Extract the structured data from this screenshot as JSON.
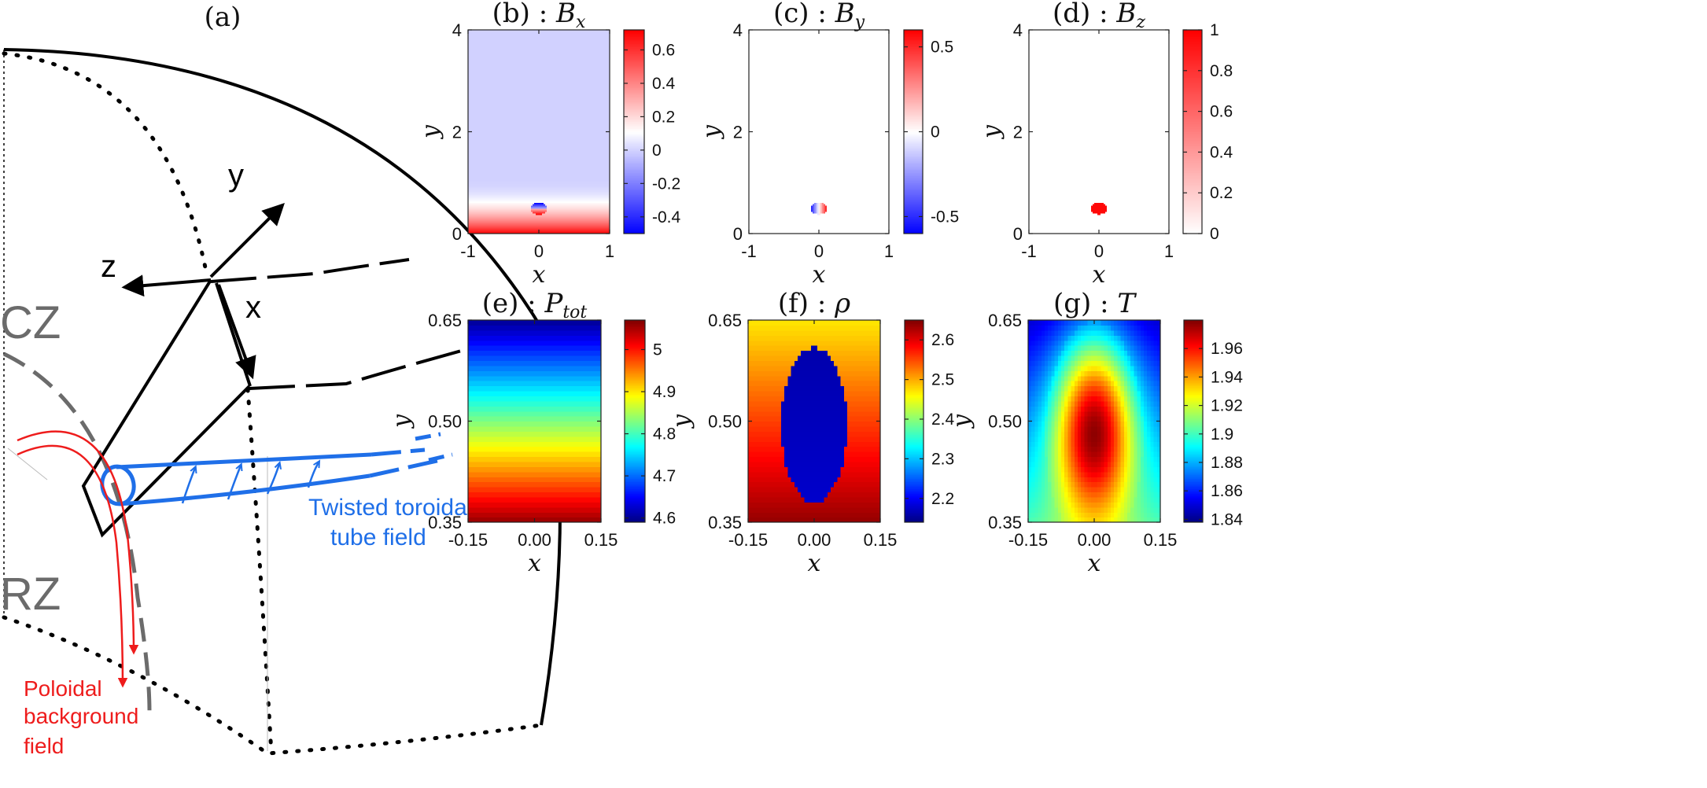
{
  "sketch": {
    "title": "(a)",
    "axis_x": "x",
    "axis_y": "y",
    "axis_z": "z",
    "label_cz": "CZ",
    "label_rz": "RZ",
    "tube_label": [
      "Twisted toroidal",
      "tube field"
    ],
    "poloidal_label": [
      "Poloidal",
      "background",
      "field"
    ],
    "colors": {
      "tube": "#1f6fe8",
      "poloidal": "#ee1c1c",
      "zone": "#666666"
    }
  },
  "chart_data": [
    {
      "id": "b",
      "type": "heatmap",
      "title": "(b) : Bx",
      "title_prefix": "(b) : ",
      "title_var": "B",
      "title_sub": "x",
      "xlabel": "x",
      "ylabel": "y",
      "xlim": [
        -1,
        1
      ],
      "ylim": [
        0,
        4
      ],
      "xticks": [
        "-1",
        "0",
        "1"
      ],
      "yticks": [
        "0",
        "2",
        "4"
      ],
      "colorbar": {
        "colormap": "blue-white-red",
        "min": -0.5,
        "max": 0.72,
        "ticks": [
          "0.6",
          "0.4",
          "0.2",
          "0",
          "-0.2",
          "-0.4"
        ]
      },
      "field": {
        "kind": "Bx",
        "tube_center": [
          0,
          0.5
        ],
        "background_decay_top": 1.1
      }
    },
    {
      "id": "c",
      "type": "heatmap",
      "title": "(c) : By",
      "title_prefix": "(c) : ",
      "title_var": "B",
      "title_sub": "y",
      "xlabel": "x",
      "ylabel": "y",
      "xlim": [
        -1,
        1
      ],
      "ylim": [
        0,
        4
      ],
      "xticks": [
        "-1",
        "0",
        "1"
      ],
      "yticks": [
        "0",
        "2",
        "4"
      ],
      "colorbar": {
        "colormap": "blue-white-red",
        "min": -0.6,
        "max": 0.6,
        "ticks": [
          "0.5",
          "0",
          "-0.5"
        ]
      },
      "field": {
        "kind": "By",
        "tube_center": [
          0,
          0.5
        ]
      }
    },
    {
      "id": "d",
      "type": "heatmap",
      "title": "(d) : Bz",
      "title_prefix": "(d) : ",
      "title_var": "B",
      "title_sub": "z",
      "xlabel": "x",
      "ylabel": "y",
      "xlim": [
        -1,
        1
      ],
      "ylim": [
        0,
        4
      ],
      "xticks": [
        "-1",
        "0",
        "1"
      ],
      "yticks": [
        "0",
        "2",
        "4"
      ],
      "colorbar": {
        "colormap": "white-red",
        "min": 0,
        "max": 1,
        "ticks": [
          "1",
          "0.8",
          "0.6",
          "0.4",
          "0.2",
          "0"
        ]
      },
      "field": {
        "kind": "Bz",
        "tube_center": [
          0,
          0.5
        ]
      }
    },
    {
      "id": "e",
      "type": "heatmap",
      "title": "(e) : Ptot",
      "title_prefix": "(e) : ",
      "title_var": "P",
      "title_sub": "tot",
      "xlabel": "x",
      "ylabel": "y",
      "xlim": [
        -0.15,
        0.15
      ],
      "ylim": [
        0.35,
        0.65
      ],
      "xticks": [
        "-0.15",
        "0.00",
        "0.15"
      ],
      "yticks": [
        "0.35",
        "0.50",
        "0.65"
      ],
      "colorbar": {
        "colormap": "jet",
        "min": 4.59,
        "max": 5.07,
        "ticks": [
          "5",
          "4.9",
          "4.8",
          "4.7",
          "4.6"
        ]
      },
      "field": {
        "kind": "Ptot",
        "bottom_value": 5.06,
        "top_value": 4.6
      }
    },
    {
      "id": "f",
      "type": "heatmap",
      "title": "(f) : ρ",
      "title_prefix": "(f) : ",
      "title_var": "ρ",
      "title_sub": "",
      "xlabel": "x",
      "ylabel": "y",
      "xlim": [
        -0.15,
        0.15
      ],
      "ylim": [
        0.35,
        0.65
      ],
      "xticks": [
        "-0.15",
        "0.00",
        "0.15"
      ],
      "yticks": [
        "0.35",
        "0.50",
        "0.65"
      ],
      "colorbar": {
        "colormap": "jet",
        "min": 2.14,
        "max": 2.65,
        "ticks": [
          "2.6",
          "2.5",
          "2.4",
          "2.3",
          "2.2"
        ]
      },
      "field": {
        "kind": "rho",
        "bottom_value": 2.64,
        "top_value": 2.47,
        "inside_value": 2.16,
        "tube_center": [
          0,
          0.495
        ],
        "tube_radius": [
          0.075,
          0.115
        ]
      }
    },
    {
      "id": "g",
      "type": "heatmap",
      "title": "(g) : T",
      "title_prefix": "(g) : ",
      "title_var": "T",
      "title_sub": "",
      "xlabel": "x",
      "ylabel": "y",
      "xlim": [
        -0.15,
        0.15
      ],
      "ylim": [
        0.35,
        0.65
      ],
      "xticks": [
        "-0.15",
        "0.00",
        "0.15"
      ],
      "yticks": [
        "0.35",
        "0.50",
        "0.65"
      ],
      "colorbar": {
        "colormap": "jet",
        "min": 1.838,
        "max": 1.98,
        "ticks": [
          "1.96",
          "1.94",
          "1.92",
          "1.9",
          "1.88",
          "1.86",
          "1.84"
        ]
      },
      "field": {
        "kind": "T",
        "bottom_value": 1.9,
        "top_value": 1.848,
        "center_value": 1.978,
        "tube_center": [
          0,
          0.48
        ],
        "tube_radius": [
          0.095,
          0.145
        ]
      }
    }
  ]
}
